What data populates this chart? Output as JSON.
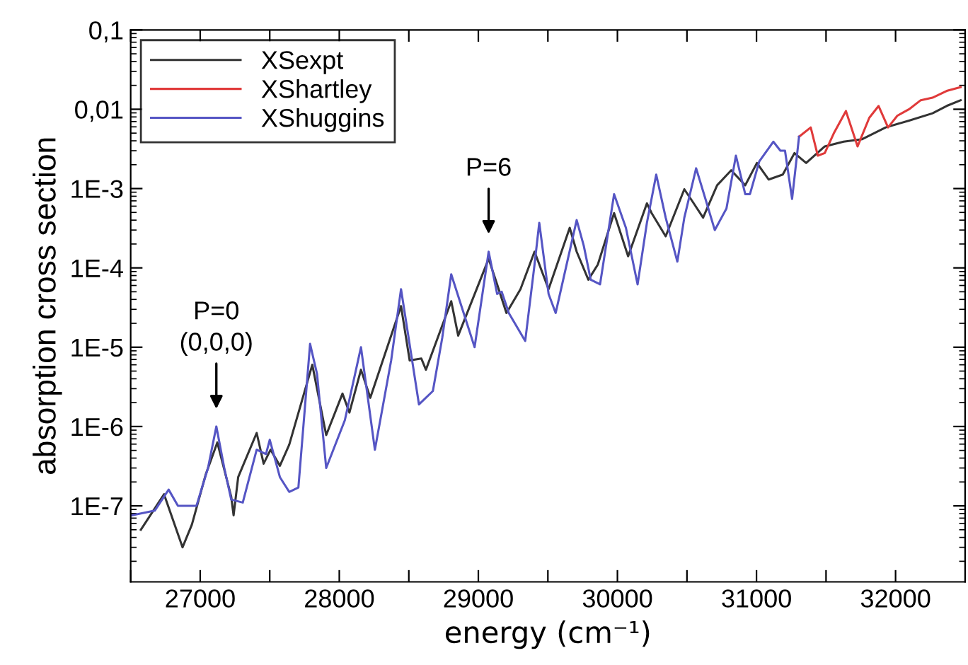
{
  "chart_data": {
    "type": "line",
    "xlabel": "energy (cm⁻¹)",
    "ylabel": "absorption cross section",
    "log": "y",
    "legend": "top left",
    "grid": false,
    "line_style": "solid",
    "marker": "none",
    "xlim": [
      26500,
      32500
    ],
    "ylim": [
      1.1e-08,
      0.1
    ],
    "xticks": [
      {
        "value": 26500,
        "label": null
      },
      27000,
      {
        "value": 27500,
        "label": null
      },
      28000,
      {
        "value": 28500,
        "label": null
      },
      29000,
      {
        "value": 29500,
        "label": null
      },
      30000,
      {
        "value": 30500,
        "label": null
      },
      31000,
      {
        "value": 31500,
        "label": null
      },
      32000
    ],
    "yticks": [
      {
        "value": 1e-07,
        "label": "1E-7"
      },
      {
        "value": 1e-06,
        "label": "1E-6"
      },
      {
        "value": 1e-05,
        "label": "1E-5"
      },
      {
        "value": 0.0001,
        "label": "1E-4"
      },
      {
        "value": 0.001,
        "label": "1E-3"
      },
      {
        "value": 0.01,
        "label": "0,01"
      },
      {
        "value": 0.1,
        "label": "0,1"
      }
    ],
    "annotations": [
      {
        "text": "P=0\n(0,0,0)",
        "x": 27116,
        "y": 1e-06
      },
      {
        "text": "P=6",
        "x": 29074,
        "y": 0.00016
      }
    ],
    "series": [
      {
        "name": "XSexpt",
        "color": "#333333",
        "x": [
          26573,
          26740,
          26873,
          26940,
          27040,
          27123,
          27223,
          27240,
          27273,
          27406,
          27456,
          27506,
          27573,
          27640,
          27806,
          27906,
          28023,
          28073,
          28156,
          28223,
          28444,
          28506,
          28590,
          28623,
          28805,
          28855,
          29074,
          29135,
          29202,
          29303,
          29404,
          29505,
          29657,
          29707,
          29791,
          29859,
          29976,
          30077,
          30212,
          30246,
          30347,
          30481,
          30549,
          30616,
          30717,
          30818,
          30919,
          31003,
          31088,
          31189,
          31273,
          31357,
          31491,
          31626,
          31761,
          31929,
          32097,
          32266,
          32367,
          32468
        ],
        "values": [
          5e-08,
          1.4e-07,
          3e-08,
          5.8e-08,
          2.5e-07,
          6.3e-07,
          1.3e-07,
          7.6e-08,
          2.3e-07,
          8.3e-07,
          3.4e-07,
          5.1e-07,
          3.2e-07,
          5.9e-07,
          6e-06,
          7.8e-07,
          2.6e-06,
          1.5e-06,
          5.2e-06,
          2.3e-06,
          3.3e-05,
          6.8e-06,
          7.2e-06,
          5.2e-06,
          3.8e-05,
          1.4e-05,
          0.00013,
          6.2e-05,
          2.7e-05,
          5.4e-05,
          0.00016,
          5.4e-05,
          0.00032,
          0.00016,
          7.1e-05,
          0.00011,
          0.00049,
          0.00014,
          0.00065,
          0.00049,
          0.00025,
          0.00098,
          0.00065,
          0.00043,
          0.0011,
          0.0017,
          0.0011,
          0.0021,
          0.0013,
          0.0015,
          0.0028,
          0.0021,
          0.0034,
          0.0039,
          0.0042,
          0.0059,
          0.0072,
          0.0089,
          0.011,
          0.013
        ]
      },
      {
        "name": "XShartley",
        "color": "#e03a3a",
        "x": [
          31306,
          31390,
          31441,
          31491,
          31559,
          31643,
          31727,
          31811,
          31878,
          31946,
          32013,
          32097,
          32181,
          32266,
          32367,
          32468
        ],
        "values": [
          0.0045,
          0.0059,
          0.0026,
          0.0028,
          0.0051,
          0.0095,
          0.0034,
          0.0078,
          0.011,
          0.0059,
          0.0083,
          0.01,
          0.013,
          0.014,
          0.017,
          0.019
        ]
      },
      {
        "name": "XShuggins",
        "color": "#5555c4",
        "x": [
          26507,
          26673,
          26773,
          26840,
          26973,
          27056,
          27116,
          27173,
          27223,
          27306,
          27406,
          27473,
          27500,
          27573,
          27640,
          27706,
          27790,
          27840,
          27906,
          28040,
          28156,
          28256,
          28373,
          28444,
          28573,
          28673,
          28740,
          28805,
          28973,
          29074,
          29135,
          29168,
          29219,
          29337,
          29404,
          29438,
          29505,
          29556,
          29707,
          29758,
          29808,
          29875,
          29976,
          30061,
          30145,
          30212,
          30279,
          30347,
          30431,
          30481,
          30566,
          30633,
          30700,
          30784,
          30852,
          30919,
          30953,
          31020,
          31121,
          31172,
          31205,
          31256,
          31306
        ],
        "values": [
          7.6e-08,
          8.7e-08,
          1.6e-07,
          1e-07,
          1e-07,
          3e-07,
          1e-06,
          3e-07,
          1.2e-07,
          1.1e-07,
          5.1e-07,
          4.5e-07,
          6.8e-07,
          2.3e-07,
          1.5e-07,
          1.7e-07,
          1.1e-05,
          4.6e-06,
          3e-07,
          1.2e-06,
          1e-05,
          5.1e-07,
          6.8e-06,
          5.4e-05,
          1.9e-06,
          2.8e-06,
          1.3e-05,
          8.3e-05,
          1e-05,
          0.00016,
          4.7e-05,
          5e-05,
          2.7e-05,
          1.2e-05,
          0.00011,
          0.00037,
          4.7e-05,
          2.7e-05,
          0.0004,
          0.00019,
          7.1e-05,
          6.2e-05,
          0.00085,
          0.00032,
          6.2e-05,
          0.00037,
          0.0015,
          0.00043,
          0.00012,
          0.00043,
          0.0018,
          0.00074,
          0.0003,
          0.00056,
          0.0026,
          0.00085,
          0.00085,
          0.0022,
          0.0039,
          0.003,
          0.003,
          0.00074,
          0.0045
        ]
      }
    ]
  }
}
